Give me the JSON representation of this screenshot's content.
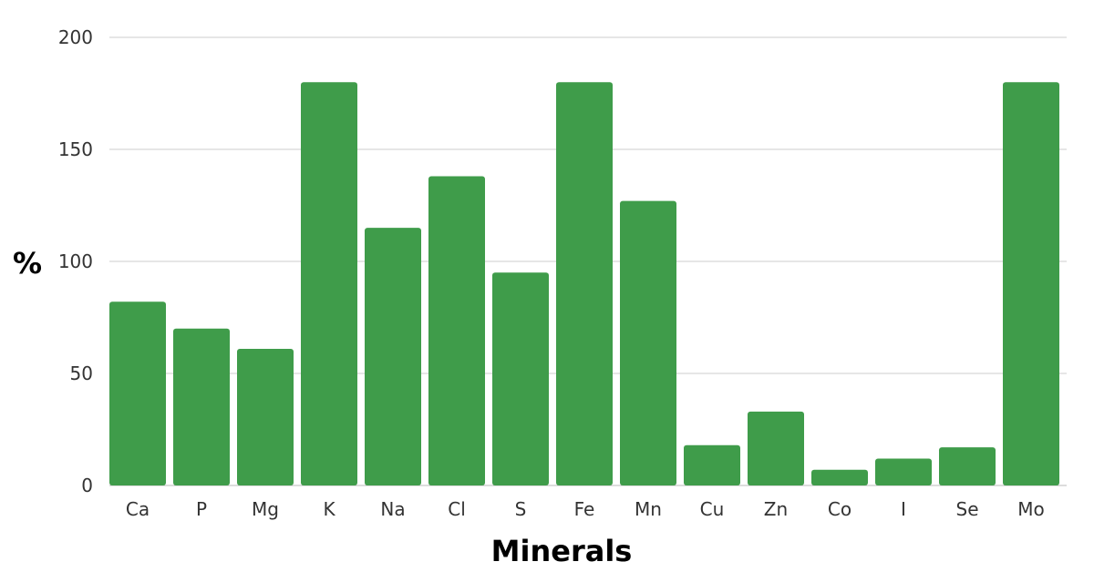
{
  "chart_data": {
    "type": "bar",
    "title": "",
    "xlabel": "Minerals",
    "ylabel": "%",
    "ylim": [
      0,
      200
    ],
    "yticks": [
      0,
      50,
      100,
      150,
      200
    ],
    "grid": true,
    "bar_color": "#3f9c4a",
    "categories": [
      "Ca",
      "P",
      "Mg",
      "K",
      "Na",
      "Cl",
      "S",
      "Fe",
      "Mn",
      "Cu",
      "Zn",
      "Co",
      "I",
      "Se",
      "Mo"
    ],
    "values": [
      82,
      70,
      61,
      180,
      115,
      138,
      95,
      180,
      127,
      18,
      33,
      7,
      12,
      17,
      180
    ]
  }
}
